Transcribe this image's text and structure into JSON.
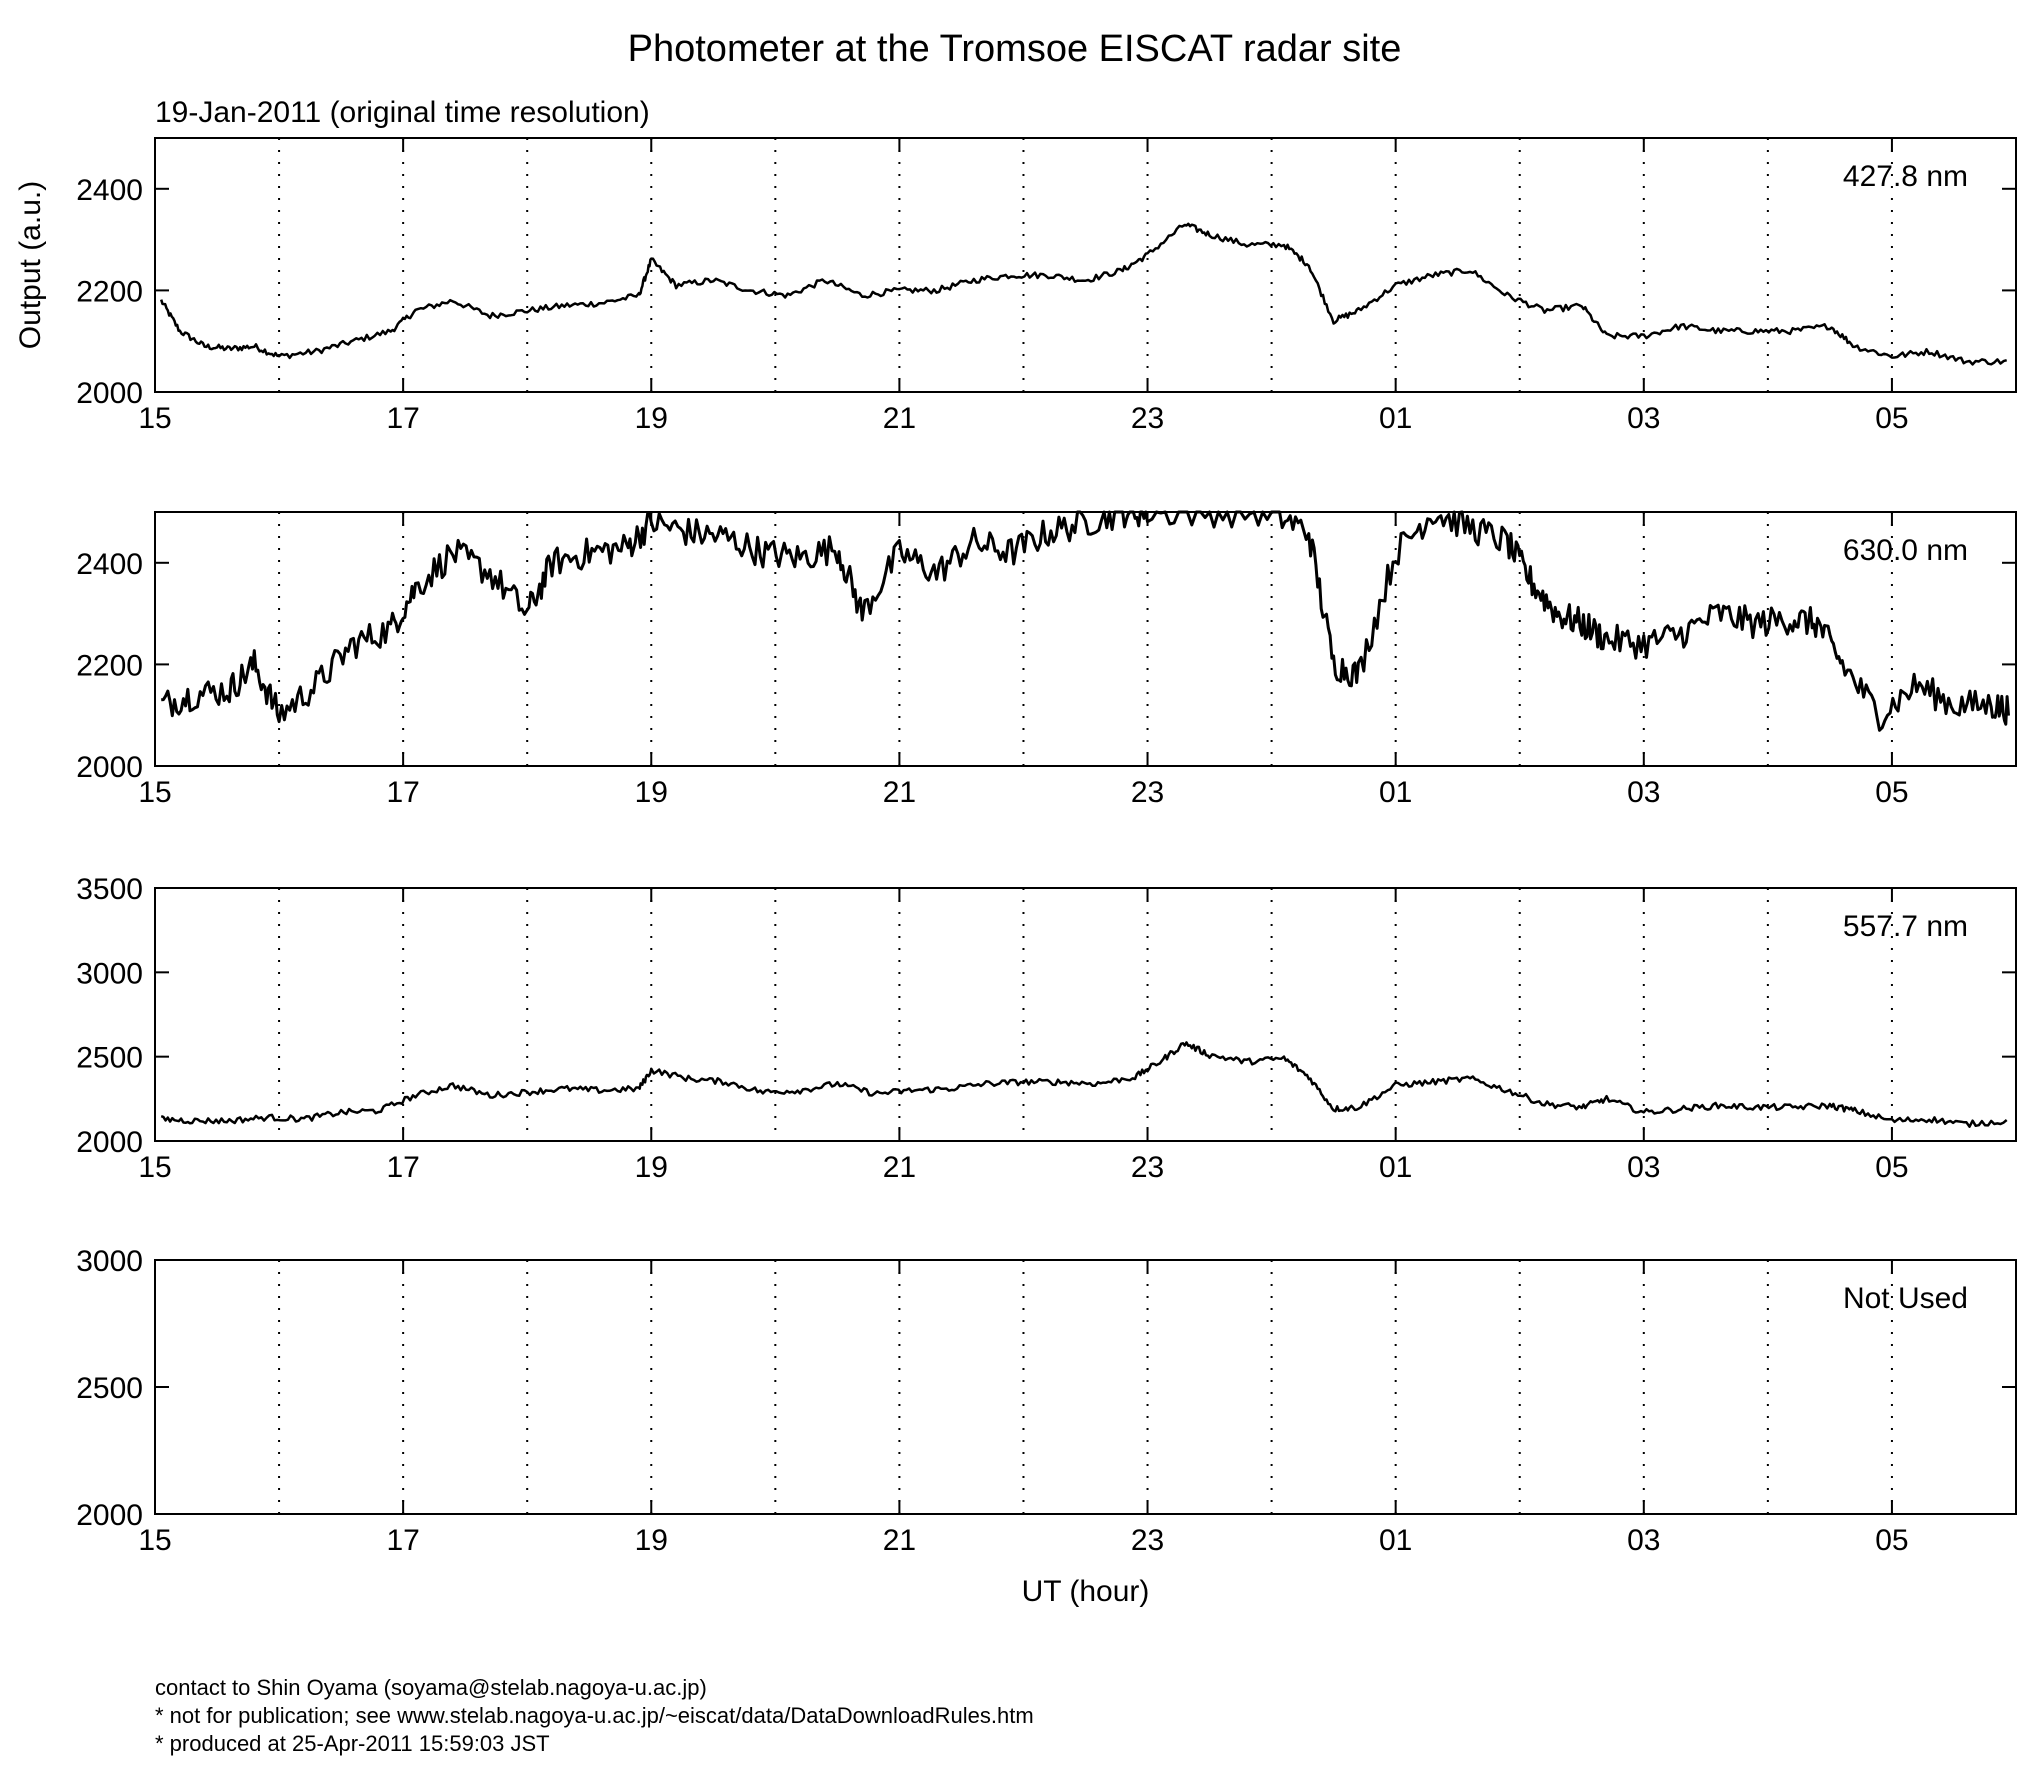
{
  "chart_data": {
    "type": "line",
    "title": "Photometer at the Tromsoe EISCAT radar site",
    "subtitle": "19-Jan-2011 (original time resolution)",
    "xlabel": "UT (hour)",
    "ylabel": "Output (a.u.)",
    "x_tick_labels": [
      "15",
      "17",
      "19",
      "21",
      "23",
      "01",
      "03",
      "05"
    ],
    "x_major_ticks_hours": [
      15,
      17,
      19,
      21,
      23,
      25,
      27,
      29
    ],
    "x_dotted_grid_hours": [
      16,
      17,
      18,
      19,
      20,
      21,
      22,
      23,
      24,
      25,
      26,
      27,
      28,
      29
    ],
    "xlim_hours": [
      15,
      30
    ],
    "grid": "dotted vertical at every hour",
    "panels": [
      {
        "label": "427.8 nm",
        "ylim": [
          2000,
          2500
        ],
        "y_ticks": [
          2000,
          2200,
          2400
        ],
        "series_approx": {
          "x_hours": [
            15.05,
            15.2,
            15.4,
            15.6,
            15.8,
            16.0,
            16.3,
            16.6,
            16.9,
            17.1,
            17.4,
            17.7,
            18.0,
            18.3,
            18.6,
            18.9,
            19.0,
            19.2,
            19.5,
            19.8,
            20.1,
            20.4,
            20.7,
            21.0,
            21.3,
            21.6,
            21.9,
            22.2,
            22.5,
            22.8,
            23.0,
            23.3,
            23.5,
            23.8,
            24.1,
            24.3,
            24.5,
            24.7,
            25.0,
            25.3,
            25.6,
            25.9,
            26.2,
            26.5,
            26.7,
            27.0,
            27.3,
            27.6,
            27.9,
            28.2,
            28.5,
            28.7,
            29.0,
            29.3,
            29.6,
            29.95
          ],
          "y": [
            2180,
            2120,
            2090,
            2085,
            2090,
            2070,
            2080,
            2100,
            2120,
            2160,
            2180,
            2150,
            2160,
            2170,
            2175,
            2190,
            2260,
            2210,
            2220,
            2200,
            2190,
            2220,
            2190,
            2200,
            2200,
            2220,
            2230,
            2230,
            2220,
            2240,
            2270,
            2330,
            2310,
            2290,
            2290,
            2250,
            2140,
            2160,
            2210,
            2230,
            2240,
            2190,
            2160,
            2170,
            2110,
            2110,
            2130,
            2120,
            2120,
            2120,
            2130,
            2090,
            2070,
            2080,
            2060,
            2060
          ]
        }
      },
      {
        "label": "630.0 nm",
        "ylim": [
          2000,
          2500
        ],
        "y_ticks": [
          2000,
          2200,
          2400
        ],
        "series_approx": {
          "x_hours": [
            15.05,
            15.3,
            15.6,
            15.8,
            16.0,
            16.3,
            16.6,
            16.9,
            17.1,
            17.4,
            17.7,
            18.0,
            18.2,
            18.5,
            18.8,
            19.0,
            19.3,
            19.6,
            19.9,
            20.2,
            20.5,
            20.7,
            21.0,
            21.3,
            21.6,
            21.9,
            22.2,
            22.5,
            22.8,
            23.0,
            23.5,
            24.0,
            24.3,
            24.5,
            24.7,
            25.0,
            25.3,
            25.6,
            25.9,
            26.1,
            26.3,
            26.5,
            26.7,
            27.0,
            27.3,
            27.6,
            27.9,
            28.2,
            28.4,
            28.6,
            28.9,
            29.2,
            29.5,
            29.8,
            29.95
          ],
          "y": [
            2120,
            2140,
            2150,
            2200,
            2100,
            2160,
            2240,
            2270,
            2350,
            2420,
            2380,
            2300,
            2400,
            2420,
            2430,
            2480,
            2460,
            2450,
            2420,
            2410,
            2430,
            2300,
            2420,
            2380,
            2440,
            2420,
            2460,
            2480,
            2500,
            2500,
            2500,
            2500,
            2460,
            2200,
            2180,
            2420,
            2500,
            2470,
            2440,
            2360,
            2300,
            2280,
            2250,
            2240,
            2260,
            2300,
            2280,
            2290,
            2280,
            2200,
            2100,
            2160,
            2120,
            2120,
            2110
          ]
        }
      },
      {
        "label": "557.7 nm",
        "ylim": [
          2000,
          3500
        ],
        "y_ticks": [
          2000,
          2500,
          3000,
          3500
        ],
        "series_approx": {
          "x_hours": [
            15.05,
            15.3,
            15.6,
            15.9,
            16.2,
            16.5,
            16.8,
            17.1,
            17.4,
            17.7,
            18.0,
            18.3,
            18.6,
            18.9,
            19.0,
            19.3,
            19.6,
            19.9,
            20.2,
            20.5,
            20.8,
            21.1,
            21.4,
            21.7,
            22.0,
            22.3,
            22.6,
            22.9,
            23.1,
            23.3,
            23.5,
            23.8,
            24.1,
            24.3,
            24.5,
            24.7,
            25.0,
            25.3,
            25.6,
            25.9,
            26.2,
            26.5,
            26.7,
            27.0,
            27.3,
            27.6,
            27.9,
            28.2,
            28.5,
            28.7,
            29.0,
            29.3,
            29.6,
            29.95
          ],
          "y": [
            2130,
            2120,
            2120,
            2140,
            2130,
            2170,
            2180,
            2270,
            2330,
            2270,
            2290,
            2310,
            2300,
            2310,
            2420,
            2370,
            2350,
            2290,
            2300,
            2340,
            2280,
            2300,
            2310,
            2340,
            2350,
            2350,
            2340,
            2380,
            2470,
            2580,
            2510,
            2470,
            2490,
            2380,
            2190,
            2200,
            2330,
            2350,
            2370,
            2300,
            2220,
            2200,
            2250,
            2170,
            2190,
            2210,
            2200,
            2200,
            2210,
            2180,
            2120,
            2130,
            2100,
            2120
          ]
        }
      },
      {
        "label": "Not Used",
        "ylim": [
          2000,
          3000
        ],
        "y_ticks": [
          2000,
          2500,
          3000
        ],
        "series_approx": null
      }
    ]
  },
  "footer": {
    "line1": "contact to Shin Oyama (soyama@stelab.nagoya-u.ac.jp)",
    "line2": "* not for publication; see www.stelab.nagoya-u.ac.jp/~eiscat/data/DataDownloadRules.htm",
    "line3": "* produced at 25-Apr-2011 15:59:03 JST"
  }
}
